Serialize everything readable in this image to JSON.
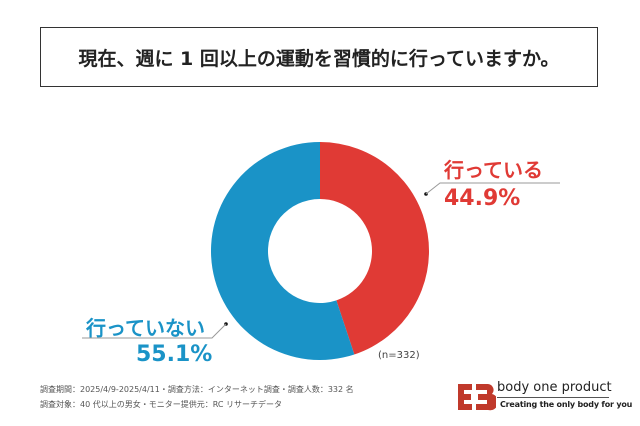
{
  "chart_data": {
    "type": "pie",
    "style": "donut",
    "title": "現在、週に 1 回以上の運動を習慣的に行っていますか。",
    "categories": [
      "行っている",
      "行っていない"
    ],
    "values": [
      44.9,
      55.1
    ],
    "value_labels": [
      "44.9%",
      "55.1%"
    ],
    "colors": [
      "#e03a35",
      "#1a93c7"
    ],
    "sample_note": "(n=332)",
    "start": "top, clockwise"
  },
  "footer": {
    "line1": "調査期間：2025/4/9-2025/4/11・調査方法：インターネット調査・調査人数：332 名",
    "line2": "調査対象：40 代以上の男女・モニター提供元：RC リサーチデータ"
  },
  "brand": {
    "name": "body one product",
    "slogan": "Creating the only body for you",
    "logo_text": "EB",
    "color": "#c0392b"
  }
}
